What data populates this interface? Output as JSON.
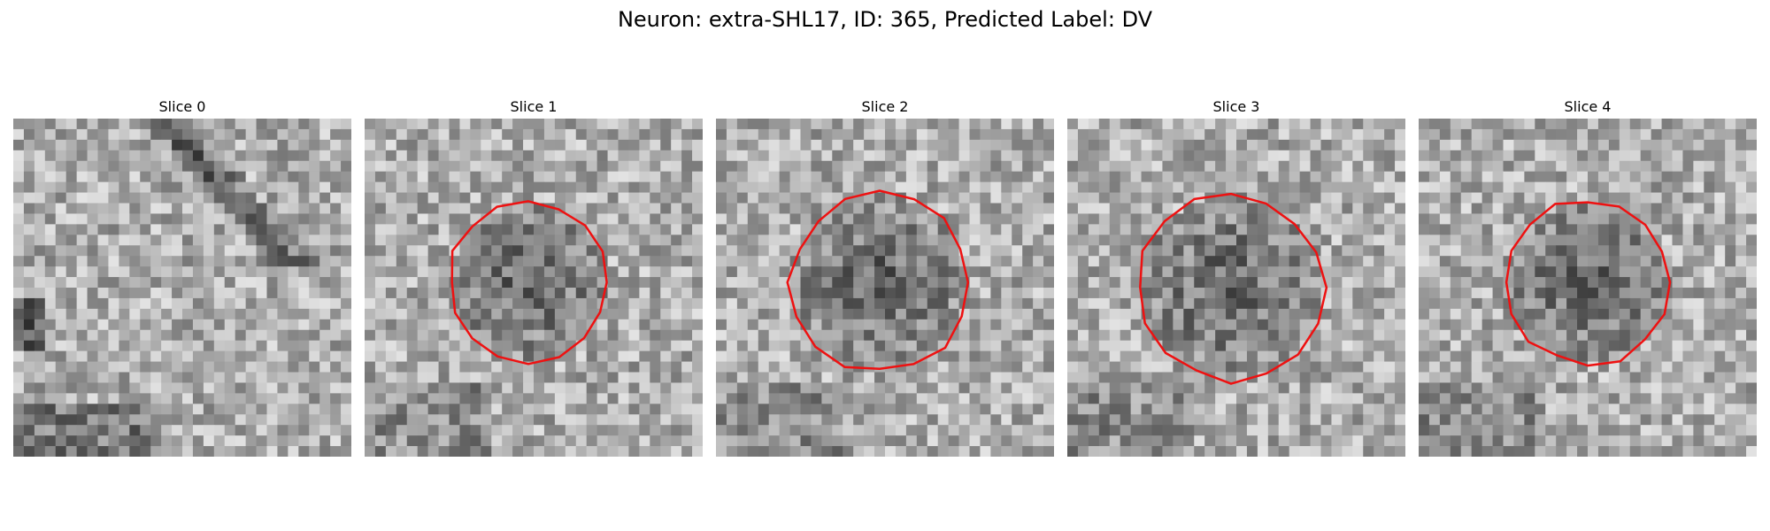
{
  "figure": {
    "title": "Neuron: extra-SHL17, ID: 365, Predicted Label: DV"
  },
  "panels": [
    {
      "title": "Slice 0",
      "has_contour": false,
      "pattern": "slice0"
    },
    {
      "title": "Slice 1",
      "has_contour": true,
      "pattern": "blob"
    },
    {
      "title": "Slice 2",
      "has_contour": true,
      "pattern": "blob"
    },
    {
      "title": "Slice 3",
      "has_contour": true,
      "pattern": "blob"
    },
    {
      "title": "Slice 4",
      "has_contour": true,
      "pattern": "blob"
    }
  ],
  "colors": {
    "contour": "#ee1111",
    "background": "#ffffff"
  },
  "colormap": "gray"
}
